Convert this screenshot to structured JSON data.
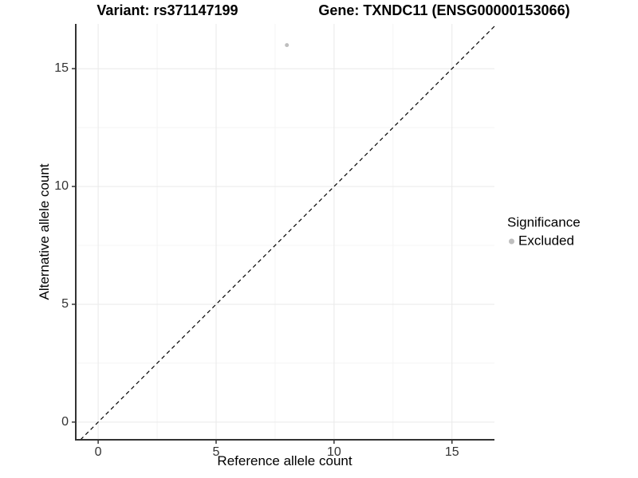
{
  "chart_data": {
    "type": "scatter",
    "title_left": "Variant: rs371147199",
    "title_right": "Gene: TXNDC11 (ENSG00000153066)",
    "xlabel": "Reference allele count",
    "ylabel": "Alternative allele count",
    "xlim": [
      -0.95,
      16.8
    ],
    "ylim": [
      -0.75,
      16.9
    ],
    "xticks": [
      0,
      5,
      10,
      15
    ],
    "yticks": [
      0,
      5,
      10,
      15
    ],
    "xminor": [
      2.5,
      7.5,
      12.5
    ],
    "yminor": [
      2.5,
      7.5,
      12.5
    ],
    "grid": "major and minor, light grey on white",
    "identity_line": {
      "style": "dashed",
      "color": "#000000"
    },
    "series": [
      {
        "name": "Excluded",
        "color": "#bebebe",
        "point_radius": 2.5,
        "points": [
          {
            "x": 8,
            "y": 16
          }
        ]
      }
    ],
    "legend": {
      "title": "Significance",
      "position": "right",
      "entries": [
        {
          "label": "Excluded",
          "color": "#bebebe"
        }
      ]
    },
    "colors": {
      "axis_line": "#333333",
      "tick_mark": "#333333",
      "tick_label": "#333333",
      "grid_major": "#e9e9e9",
      "grid_minor": "#f4f4f4",
      "background": "#ffffff"
    }
  }
}
